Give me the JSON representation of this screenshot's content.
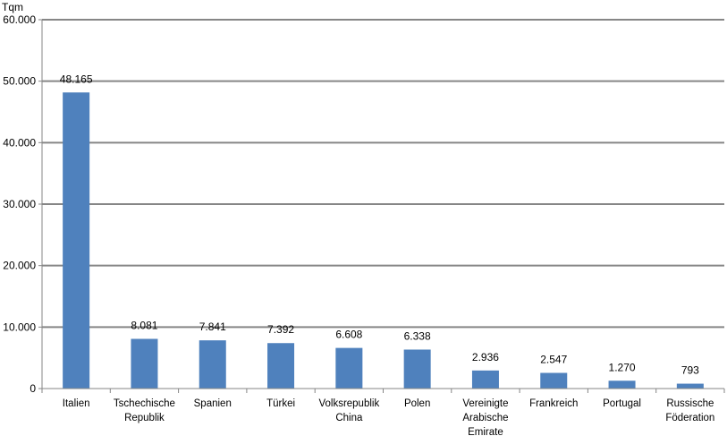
{
  "chart_data": {
    "type": "bar",
    "unit_label": "Tqm",
    "categories": [
      [
        "Italien"
      ],
      [
        "Tschechische",
        "Republik"
      ],
      [
        "Spanien"
      ],
      [
        "Türkei"
      ],
      [
        "Volksrepublik",
        "China"
      ],
      [
        "Polen"
      ],
      [
        "Vereinigte",
        "Arabische",
        "Emirate"
      ],
      [
        "Frankreich"
      ],
      [
        "Portugal"
      ],
      [
        "Russische",
        "Föderation"
      ]
    ],
    "values": [
      48165,
      8081,
      7841,
      7392,
      6608,
      6338,
      2936,
      2547,
      1270,
      793
    ],
    "value_labels": [
      "48.165",
      "8.081",
      "7.841",
      "7.392",
      "6.608",
      "6.338",
      "2.936",
      "2.547",
      "1.270",
      "793"
    ],
    "yticks": [
      0,
      10000,
      20000,
      30000,
      40000,
      50000,
      60000
    ],
    "ytick_labels": [
      "0",
      "10.000",
      "20.000",
      "30.000",
      "40.000",
      "50.000",
      "60.000"
    ],
    "ylim": [
      0,
      60000
    ],
    "grid": true,
    "legend": "none",
    "colors": {
      "bar": "#4f81bd",
      "grid": "#868686",
      "axis": "#868686",
      "text": "#000000"
    }
  }
}
